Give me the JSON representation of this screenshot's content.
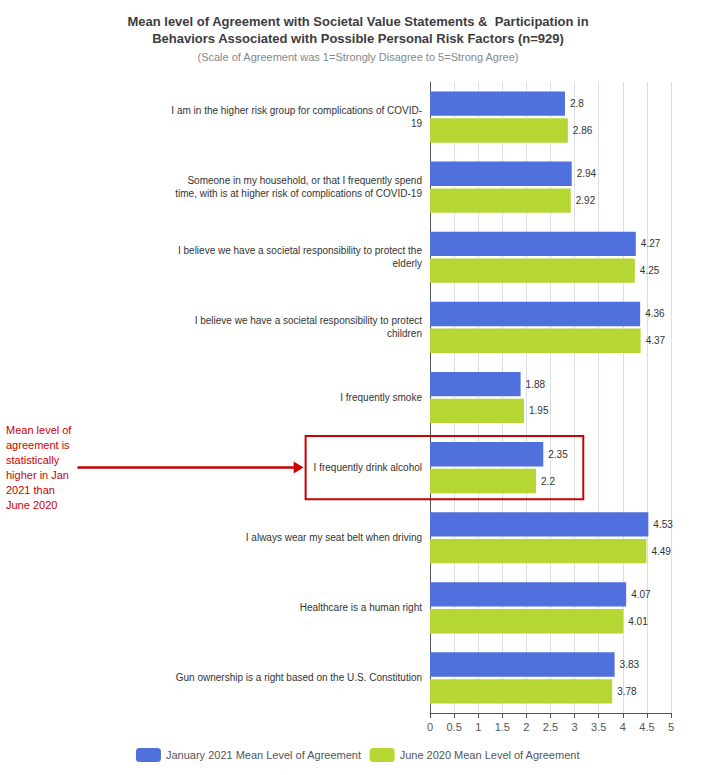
{
  "chart_data": {
    "type": "bar",
    "orientation": "horizontal",
    "title": "Mean level of Agreement with Societal Value Statements &  Participation in\nBehaviors Associated with Possible Personal Risk Factors (n=929)",
    "subtitle": "(Scale of Agreement was 1=Strongly Disagree to 5=Strong Agree)",
    "categories": [
      "I am in the higher risk group for complications of COVID-\n19",
      "Someone in my household, or that I frequently spend\ntime, with is at higher risk of complications of COVID-19",
      "I believe we have a societal responsibility to protect the\nelderly",
      "I believe we have a societal responsibility to protect\nchildren",
      "I frequently smoke",
      "I frequently drink alcohol",
      "I always wear my seat belt when driving",
      "Healthcare is a human right",
      "Gun ownership is a right based on the U.S. Constitution"
    ],
    "series": [
      {
        "name": "January 2021 Mean Level of Agreement",
        "values": [
          2.8,
          2.94,
          4.27,
          4.36,
          1.88,
          2.35,
          4.53,
          4.07,
          3.83
        ]
      },
      {
        "name": "June 2020 Mean Level of Agreement",
        "values": [
          2.86,
          2.92,
          4.25,
          4.37,
          1.95,
          2.2,
          4.49,
          4.01,
          3.78
        ]
      }
    ],
    "xlim": [
      0,
      5
    ],
    "xticks": [
      0,
      0.5,
      1,
      1.5,
      2,
      2.5,
      3,
      3.5,
      4,
      4.5,
      5
    ],
    "grid": true,
    "legend": "bottom",
    "data_labels": true,
    "annotations": [
      {
        "text": "Mean level of\nagreement is\nstatistically\nhigher in Jan\n2021 than\nJune 2020",
        "category": "I frequently drink alcohol",
        "color": "#cc0000"
      }
    ]
  }
}
